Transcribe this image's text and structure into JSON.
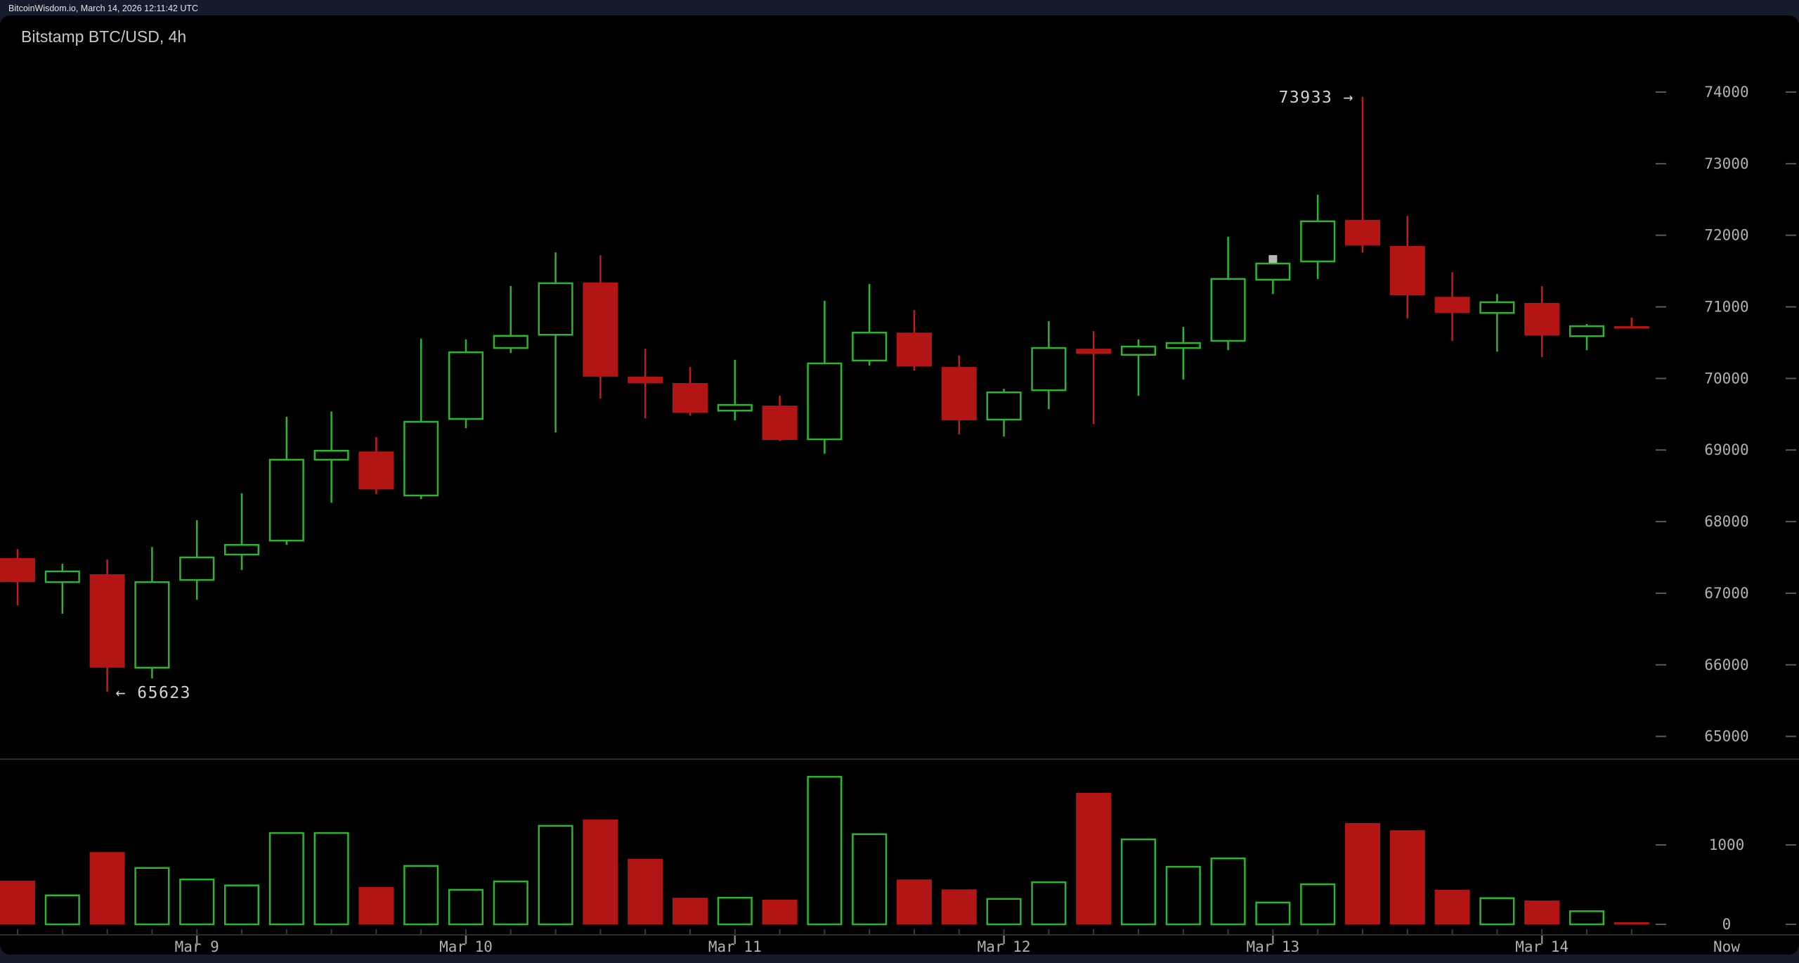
{
  "header": {
    "status_text": "BitcoinWisdom.io, March 14, 2026 12:11:42 UTC"
  },
  "main": {
    "title": "Bitstamp BTC/USD, 4h"
  },
  "colors": {
    "frame_bg": "#161b2c",
    "panel_bg": "#000000",
    "up": "#2db52d",
    "down_fill": "#b31414",
    "down_stroke": "#c41b1b",
    "axis_text": "#b2b2b2",
    "annotation_text": "#d2d2d2",
    "status_text": "#e4e4e4",
    "title_text": "#c8c8c8",
    "tick_dash": "#5a5a5a",
    "axis_line": "#2d2d2d",
    "minor_tick": "#3a3a3a",
    "major_tick": "#888888",
    "marker": "#b8b8b8"
  },
  "chart_data": {
    "type": "candlestick+volume",
    "title": "Bitstamp BTC/USD, 4h",
    "exchange": "Bitstamp",
    "pair": "BTC/USD",
    "interval": "4h",
    "legend_position": "none",
    "grid": "off",
    "price_axis": {
      "side": "right",
      "ticks": [
        74000,
        73000,
        72000,
        71000,
        70000,
        69000,
        68000,
        67000,
        66000,
        65000
      ]
    },
    "volume_axis": {
      "side": "right",
      "ticks": [
        1000,
        0
      ]
    },
    "x_axis": {
      "day_labels": [
        {
          "label": "Mar 9",
          "candle_index": 4
        },
        {
          "label": "Mar 10",
          "candle_index": 10
        },
        {
          "label": "Mar 11",
          "candle_index": 16
        },
        {
          "label": "Mar 12",
          "candle_index": 22
        },
        {
          "label": "Mar 13",
          "candle_index": 28
        },
        {
          "label": "Mar 14",
          "candle_index": 34
        },
        {
          "label": "Now",
          "candle_index": null
        }
      ]
    },
    "annotations": {
      "session_high": {
        "text": "73933 →",
        "value": 73933,
        "candle_index": 30
      },
      "session_low": {
        "text": "← 65623",
        "value": 65623,
        "candle_index": 2
      }
    },
    "marker": {
      "candle_index": 28,
      "description": "small gray square above candle body"
    },
    "candles": [
      {
        "time": "Mar 8 08:00",
        "open": 67490,
        "high": 67615,
        "low": 66830,
        "close": 67155,
        "volume": 550
      },
      {
        "time": "Mar 8 12:00",
        "open": 67155,
        "high": 67410,
        "low": 66715,
        "close": 67305,
        "volume": 365
      },
      {
        "time": "Mar 8 16:00",
        "open": 67265,
        "high": 67470,
        "low": 65623,
        "close": 65960,
        "volume": 910
      },
      {
        "time": "Mar 8 20:00",
        "open": 65960,
        "high": 67645,
        "low": 65810,
        "close": 67155,
        "volume": 710
      },
      {
        "time": "Mar 9 00:00",
        "open": 67185,
        "high": 68020,
        "low": 66910,
        "close": 67500,
        "volume": 565
      },
      {
        "time": "Mar 9 04:00",
        "open": 67540,
        "high": 68395,
        "low": 67325,
        "close": 67675,
        "volume": 490
      },
      {
        "time": "Mar 9 08:00",
        "open": 67735,
        "high": 69465,
        "low": 67675,
        "close": 68865,
        "volume": 1150
      },
      {
        "time": "Mar 9 12:00",
        "open": 68865,
        "high": 69540,
        "low": 68265,
        "close": 68990,
        "volume": 1150
      },
      {
        "time": "Mar 9 16:00",
        "open": 68980,
        "high": 69180,
        "low": 68385,
        "close": 68450,
        "volume": 470
      },
      {
        "time": "Mar 9 20:00",
        "open": 68365,
        "high": 70555,
        "low": 68315,
        "close": 69395,
        "volume": 735
      },
      {
        "time": "Mar 10 00:00",
        "open": 69435,
        "high": 70545,
        "low": 69305,
        "close": 70365,
        "volume": 435
      },
      {
        "time": "Mar 10 04:00",
        "open": 70425,
        "high": 71290,
        "low": 70355,
        "close": 70595,
        "volume": 540
      },
      {
        "time": "Mar 10 08:00",
        "open": 70610,
        "high": 71760,
        "low": 69245,
        "close": 71330,
        "volume": 1240
      },
      {
        "time": "Mar 10 12:00",
        "open": 71340,
        "high": 71720,
        "low": 69720,
        "close": 70025,
        "volume": 1320
      },
      {
        "time": "Mar 10 16:00",
        "open": 70025,
        "high": 70415,
        "low": 69445,
        "close": 69935,
        "volume": 825
      },
      {
        "time": "Mar 10 20:00",
        "open": 69935,
        "high": 70160,
        "low": 69480,
        "close": 69520,
        "volume": 335
      },
      {
        "time": "Mar 11 00:00",
        "open": 69550,
        "high": 70260,
        "low": 69415,
        "close": 69630,
        "volume": 335
      },
      {
        "time": "Mar 11 04:00",
        "open": 69620,
        "high": 69760,
        "low": 69130,
        "close": 69140,
        "volume": 310
      },
      {
        "time": "Mar 11 08:00",
        "open": 69150,
        "high": 71085,
        "low": 68950,
        "close": 70210,
        "volume": 1858
      },
      {
        "time": "Mar 11 12:00",
        "open": 70250,
        "high": 71320,
        "low": 70180,
        "close": 70640,
        "volume": 1135
      },
      {
        "time": "Mar 11 16:00",
        "open": 70640,
        "high": 70955,
        "low": 70110,
        "close": 70170,
        "volume": 565
      },
      {
        "time": "Mar 11 20:00",
        "open": 70160,
        "high": 70320,
        "low": 69220,
        "close": 69415,
        "volume": 440
      },
      {
        "time": "Mar 12 00:00",
        "open": 69425,
        "high": 69855,
        "low": 69190,
        "close": 69805,
        "volume": 320
      },
      {
        "time": "Mar 12 04:00",
        "open": 69835,
        "high": 70800,
        "low": 69570,
        "close": 70425,
        "volume": 530
      },
      {
        "time": "Mar 12 08:00",
        "open": 70415,
        "high": 70660,
        "low": 69365,
        "close": 70345,
        "volume": 1655
      },
      {
        "time": "Mar 12 12:00",
        "open": 70330,
        "high": 70545,
        "low": 69760,
        "close": 70445,
        "volume": 1070
      },
      {
        "time": "Mar 12 16:00",
        "open": 70425,
        "high": 70720,
        "low": 69985,
        "close": 70495,
        "volume": 725
      },
      {
        "time": "Mar 12 20:00",
        "open": 70525,
        "high": 71980,
        "low": 70395,
        "close": 71390,
        "volume": 830
      },
      {
        "time": "Mar 13 00:00",
        "open": 71380,
        "high": 71605,
        "low": 71180,
        "close": 71605,
        "volume": 275
      },
      {
        "time": "Mar 13 04:00",
        "open": 71635,
        "high": 72565,
        "low": 71390,
        "close": 72195,
        "volume": 505
      },
      {
        "time": "Mar 13 08:00",
        "open": 72215,
        "high": 73933,
        "low": 71760,
        "close": 71860,
        "volume": 1275
      },
      {
        "time": "Mar 13 12:00",
        "open": 71850,
        "high": 72270,
        "low": 70840,
        "close": 71160,
        "volume": 1185
      },
      {
        "time": "Mar 13 16:00",
        "open": 71140,
        "high": 71485,
        "low": 70525,
        "close": 70915,
        "volume": 435
      },
      {
        "time": "Mar 13 20:00",
        "open": 70915,
        "high": 71180,
        "low": 70375,
        "close": 71065,
        "volume": 330
      },
      {
        "time": "Mar 14 00:00",
        "open": 71055,
        "high": 71290,
        "low": 70300,
        "close": 70600,
        "volume": 300
      },
      {
        "time": "Mar 14 04:00",
        "open": 70590,
        "high": 70760,
        "low": 70395,
        "close": 70730,
        "volume": 165
      },
      {
        "time": "Mar 14 08:00",
        "open": 70730,
        "high": 70850,
        "low": 70695,
        "close": 70705,
        "volume": 15
      }
    ]
  }
}
